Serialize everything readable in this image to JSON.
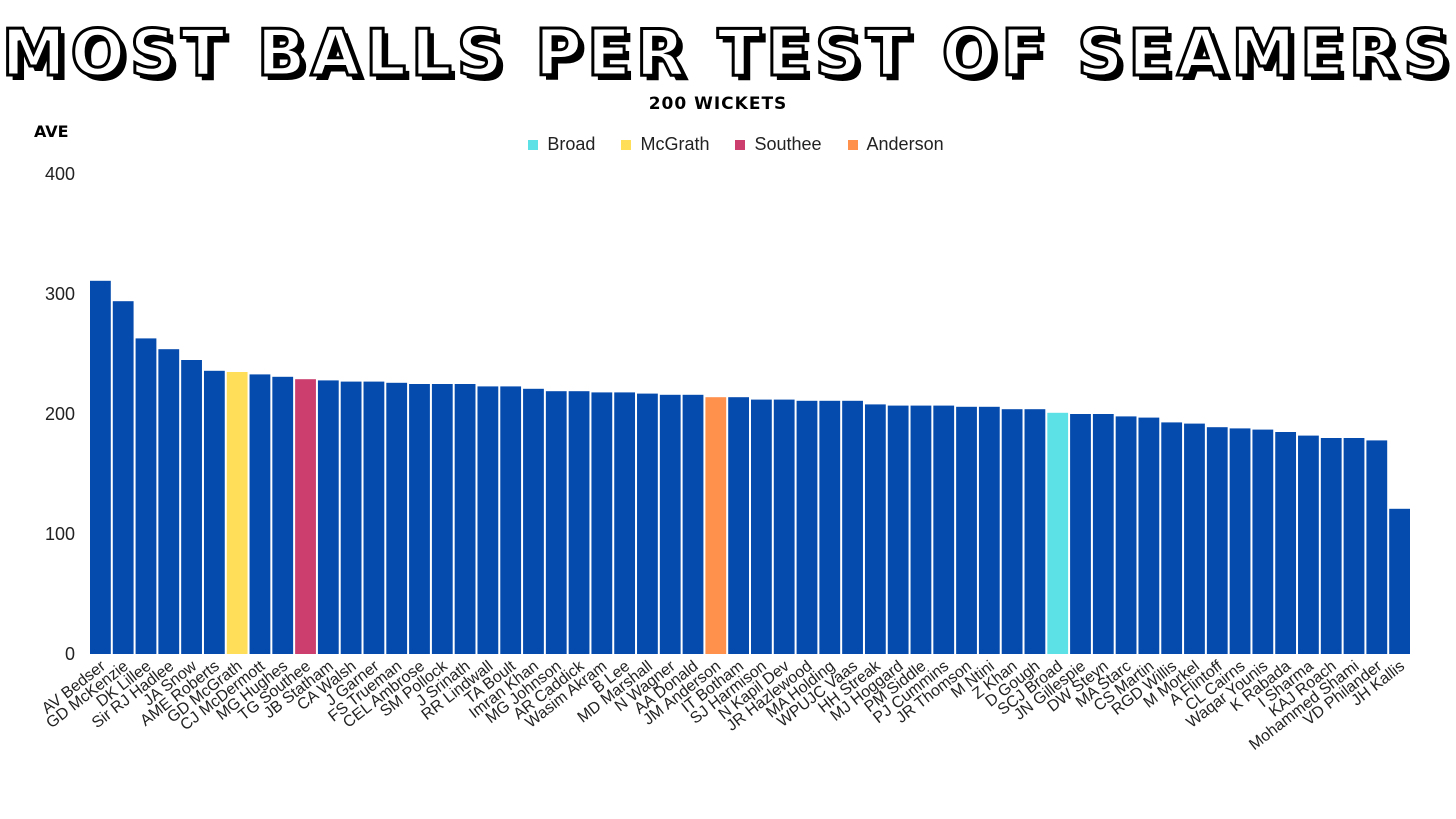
{
  "chart_data": {
    "type": "bar",
    "title": "Most Balls Per Test of Seamers",
    "subtitle": "200 wickets",
    "ylabel": "AVE",
    "xlabel": "",
    "ylim": [
      0,
      400
    ],
    "yticks": [
      0,
      100,
      200,
      300,
      400
    ],
    "grid": false,
    "legend_position": "top-center",
    "default_color": "#044bad",
    "legend": [
      {
        "label": "Broad",
        "color": "#5ce1e6"
      },
      {
        "label": "McGrath",
        "color": "#ffde59"
      },
      {
        "label": "Southee",
        "color": "#cb3e6e"
      },
      {
        "label": "Anderson",
        "color": "#ff914d"
      }
    ],
    "highlights": {
      "GD McGrath": "#ffde59",
      "TG Southee": "#cb3e6e",
      "JM Anderson": "#ff914d",
      "SCJ Broad": "#5ce1e6"
    },
    "categories": [
      "AV Bedser",
      "GD McKenzie",
      "DK Lillee",
      "Sir RJ Hadlee",
      "JA Snow",
      "AME Roberts",
      "GD McGrath",
      "CJ McDermott",
      "MG Hughes",
      "TG Southee",
      "JB Statham",
      "CA Walsh",
      "J Garner",
      "FS Trueman",
      "CEL Ambrose",
      "SM Pollock",
      "J Srinath",
      "RR Lindwall",
      "TA Boult",
      "Imran Khan",
      "MG Johnson",
      "AR Caddick",
      "Wasim Akram",
      "B Lee",
      "MD Marshall",
      "N Wagner",
      "AA Donald",
      "JM Anderson",
      "IT Botham",
      "SJ Harmison",
      "N Kapil Dev",
      "JR Hazlewood",
      "MA Holding",
      "WPUJC Vaas",
      "HH Streak",
      "MJ Hoggard",
      "PM Siddle",
      "PJ Cummins",
      "JR Thomson",
      "M Ntini",
      "Z Khan",
      "D Gough",
      "SCJ Broad",
      "JN Gillespie",
      "DW Steyn",
      "MA Starc",
      "CS Martin",
      "RGD Willis",
      "M Morkel",
      "A Flintoff",
      "CL Cairns",
      "Waqar Younis",
      "K Rabada",
      "I Sharma",
      "KAJ Roach",
      "Mohammed Shami",
      "VD Philander",
      "JH Kallis"
    ],
    "values": [
      311,
      294,
      263,
      254,
      245,
      236,
      235,
      233,
      231,
      229,
      228,
      227,
      227,
      226,
      225,
      225,
      225,
      223,
      223,
      221,
      219,
      219,
      218,
      218,
      217,
      216,
      216,
      214,
      214,
      212,
      212,
      211,
      211,
      211,
      208,
      207,
      207,
      207,
      206,
      206,
      204,
      204,
      201,
      200,
      200,
      198,
      197,
      193,
      192,
      189,
      188,
      187,
      185,
      182,
      180,
      180,
      178,
      121
    ]
  }
}
